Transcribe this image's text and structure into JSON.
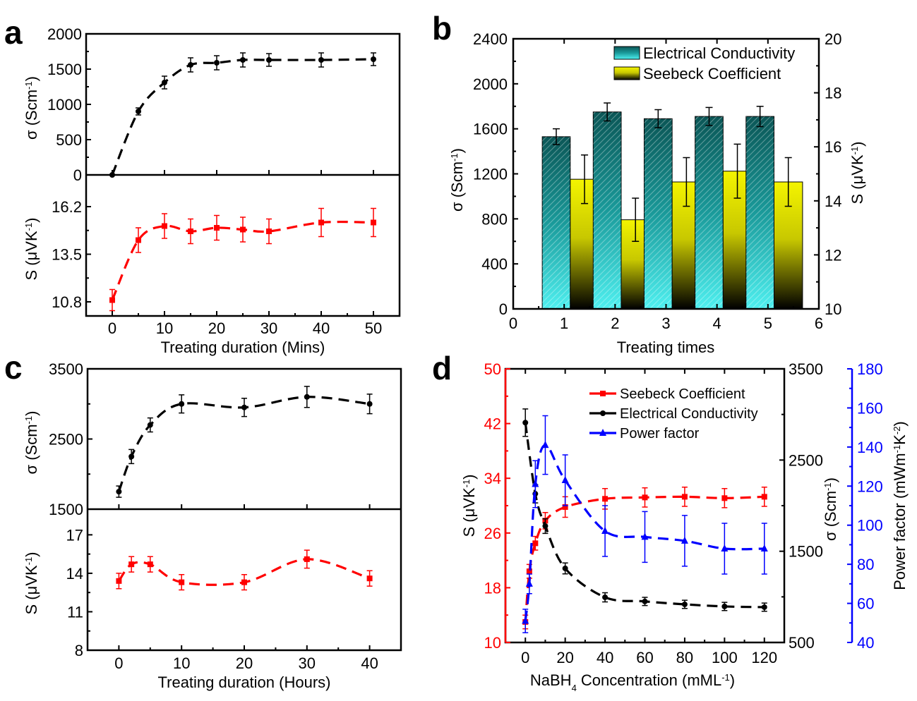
{
  "chart_data": [
    {
      "panel": "a",
      "type": "line",
      "xlabel": "Treating duration (Mins)",
      "xlim": [
        -5,
        55
      ],
      "xticks": [
        0,
        10,
        20,
        30,
        40,
        50
      ],
      "top": {
        "ylabel": [
          "σ (Scm",
          "-1",
          ")"
        ],
        "ylim": [
          0,
          2000
        ],
        "yticks": [
          0,
          500,
          1000,
          1500,
          2000
        ],
        "series": {
          "name": "Electrical Conductivity",
          "color": "#000000",
          "marker": "circle",
          "x": [
            0,
            5,
            10,
            15,
            20,
            25,
            30,
            40,
            50
          ],
          "y": [
            0,
            900,
            1310,
            1560,
            1590,
            1630,
            1630,
            1630,
            1640
          ],
          "err": [
            0,
            50,
            90,
            100,
            100,
            100,
            90,
            100,
            90
          ]
        }
      },
      "bottom": {
        "ylabel": [
          "S (μVK",
          "-1",
          ")"
        ],
        "ylim": [
          10,
          18
        ],
        "yticks": [
          10.8,
          13.5,
          16.2
        ],
        "series": {
          "name": "Seebeck Coefficient",
          "color": "#ff0000",
          "marker": "square",
          "x": [
            0,
            5,
            10,
            15,
            20,
            25,
            30,
            40,
            50
          ],
          "y": [
            10.9,
            14.3,
            15.1,
            14.8,
            15.0,
            14.9,
            14.8,
            15.3,
            15.3
          ],
          "err": [
            0.6,
            0.7,
            0.7,
            0.7,
            0.7,
            0.7,
            0.7,
            0.8,
            0.8
          ]
        }
      }
    },
    {
      "panel": "b",
      "type": "bar",
      "xlabel": "Treating times",
      "categories": [
        1,
        2,
        3,
        4,
        5
      ],
      "xlim": [
        0,
        6
      ],
      "xticks": [
        0,
        1,
        2,
        3,
        4,
        5,
        6
      ],
      "ylabel": [
        "σ (Scm",
        "-1",
        ")"
      ],
      "ylim": [
        0,
        2400
      ],
      "yticks": [
        0,
        400,
        800,
        1200,
        1600,
        2000,
        2400
      ],
      "y2label": [
        "S (μVK",
        "-1",
        ")"
      ],
      "y2lim": [
        10,
        20
      ],
      "y2ticks": [
        10,
        12,
        14,
        16,
        18,
        20
      ],
      "legend": "top-right",
      "series": [
        {
          "name": "Electrical Conductivity",
          "axis": "left",
          "color": "#1a9a9a",
          "values": [
            1530,
            1750,
            1690,
            1710,
            1710
          ],
          "err": [
            70,
            80,
            80,
            80,
            90
          ]
        },
        {
          "name": "Seebeck Coefficient",
          "axis": "right",
          "color": "#f0f000",
          "values": [
            14.8,
            13.3,
            14.7,
            15.1,
            14.7
          ],
          "err": [
            0.9,
            0.8,
            0.9,
            1.0,
            0.9
          ]
        }
      ]
    },
    {
      "panel": "c",
      "type": "line",
      "xlabel": "Treating duration (Hours)",
      "xlim": [
        -5,
        45
      ],
      "xticks": [
        0,
        10,
        20,
        30,
        40
      ],
      "top": {
        "ylabel": [
          "σ (Scm",
          "-1",
          ")"
        ],
        "ylim": [
          1500,
          3500
        ],
        "yticks": [
          1500,
          2500,
          3500
        ],
        "series": {
          "name": "Electrical Conductivity",
          "color": "#000000",
          "marker": "circle",
          "x": [
            0,
            2,
            5,
            10,
            20,
            30,
            40
          ],
          "y": [
            1750,
            2250,
            2700,
            3000,
            2950,
            3100,
            3000
          ],
          "err": [
            80,
            100,
            100,
            130,
            130,
            150,
            140
          ]
        }
      },
      "bottom": {
        "ylabel": [
          "S (μVK",
          "-1",
          ")"
        ],
        "ylim": [
          8,
          19
        ],
        "yticks": [
          8,
          11,
          14,
          17
        ],
        "series": {
          "name": "Seebeck Coefficient",
          "color": "#ff0000",
          "marker": "square",
          "x": [
            0,
            2,
            5,
            10,
            20,
            30,
            40
          ],
          "y": [
            13.4,
            14.7,
            14.7,
            13.3,
            13.3,
            15.1,
            13.6
          ],
          "err": [
            0.6,
            0.6,
            0.6,
            0.6,
            0.6,
            0.7,
            0.6
          ]
        }
      }
    },
    {
      "panel": "d",
      "type": "line",
      "xlabel": [
        "NaBH",
        "4",
        " Concentration (mML",
        "-1",
        ")"
      ],
      "xlim": [
        -10,
        130
      ],
      "xticks": [
        0,
        20,
        40,
        60,
        80,
        100,
        120
      ],
      "legend": "top-right",
      "axes": [
        {
          "label": [
            "S (μVK",
            "-1",
            ")"
          ],
          "ylim": [
            10,
            50
          ],
          "yticks": [
            10,
            18,
            26,
            34,
            42,
            50
          ],
          "color": "#ff0000"
        },
        {
          "label": [
            "σ (Scm",
            "-1",
            ")"
          ],
          "ylim": [
            500,
            3500
          ],
          "yticks": [
            500,
            1500,
            2500,
            3500
          ],
          "color": "#000000"
        },
        {
          "label": [
            "Power factor (mWm",
            "-1",
            "K",
            "-2",
            ")"
          ],
          "ylim": [
            40,
            180
          ],
          "yticks": [
            40,
            60,
            80,
            100,
            120,
            140,
            160,
            180
          ],
          "color": "#0000ff"
        }
      ],
      "series": [
        {
          "name": "Seebeck Coefficient",
          "axis": 0,
          "color": "#ff0000",
          "marker": "square",
          "x": [
            0,
            2,
            5,
            10,
            20,
            40,
            60,
            80,
            100,
            120
          ],
          "y": [
            13,
            20.4,
            24.5,
            27.8,
            29.8,
            31,
            31.2,
            31.3,
            31.1,
            31.3
          ],
          "err": [
            1,
            1,
            1,
            1.2,
            1.5,
            1.5,
            1.4,
            1.4,
            1.4,
            1.4
          ]
        },
        {
          "name": "Electrical Conductivity",
          "axis": 1,
          "color": "#000000",
          "marker": "circle",
          "x": [
            0,
            5,
            10,
            20,
            40,
            60,
            80,
            100,
            120
          ],
          "y": [
            2910,
            2130,
            1776,
            1312,
            995,
            950,
            918,
            895,
            887
          ],
          "err": [
            150,
            100,
            80,
            60,
            50,
            45,
            45,
            45,
            45
          ]
        },
        {
          "name": "Power factor",
          "axis": 2,
          "color": "#0000ff",
          "marker": "triangle",
          "x": [
            0,
            2,
            5,
            10,
            20,
            40,
            60,
            80,
            100,
            120
          ],
          "y": [
            51,
            70,
            121,
            141,
            123,
            97,
            94,
            92,
            88,
            88
          ],
          "err": [
            6,
            5,
            12,
            15,
            13,
            13,
            13,
            13,
            13,
            13
          ]
        }
      ]
    }
  ]
}
